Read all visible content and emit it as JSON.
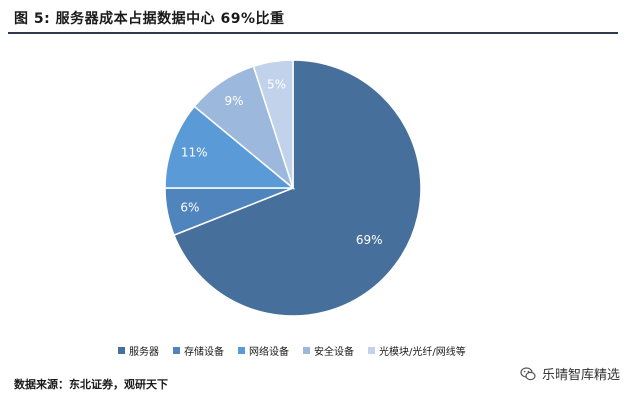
{
  "figure": {
    "title": "图  5: 服务器成本占据数据中心 69%比重",
    "source": "数据来源：东北证券，观研天下"
  },
  "watermark": {
    "text": "乐晴智库精选",
    "icon": "wechat-icon"
  },
  "colors": {
    "rule": "#2f3b4a",
    "label_on_slice": "#ffffff"
  },
  "chart_data": {
    "type": "pie",
    "title": "图  5: 服务器成本占据数据中心 69%比重",
    "slices": [
      {
        "name": "服务器",
        "value": 69,
        "label": "69%",
        "color": "#46709b"
      },
      {
        "name": "存储设备",
        "value": 6,
        "label": "6%",
        "color": "#4f84bd"
      },
      {
        "name": "网络设备",
        "value": 11,
        "label": "11%",
        "color": "#5a9ad6"
      },
      {
        "name": "安全设备",
        "value": 9,
        "label": "9%",
        "color": "#9cb8dc"
      },
      {
        "name": "光模块/光纤/网线等",
        "value": 5,
        "label": "5%",
        "color": "#c1d2ea"
      }
    ],
    "start_angle": "12 o'clock",
    "direction": "clockwise",
    "legend_position": "bottom"
  }
}
